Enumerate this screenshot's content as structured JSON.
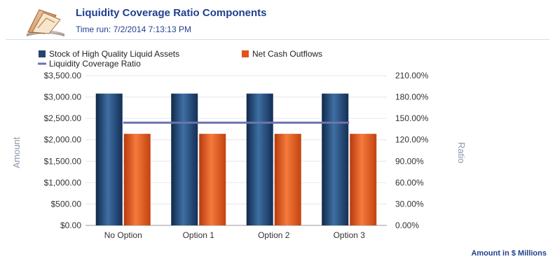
{
  "header": {
    "title": "Liquidity Coverage Ratio Components",
    "time_run": "Time run: 7/2/2014 7:13:13 PM",
    "icon": "report-folder-icon"
  },
  "footer": {
    "note": "Amount in $ Millions"
  },
  "colors": {
    "bar_stock": "#24456f",
    "bar_cash": "#e0531b",
    "line_ratio": "#6c74b0",
    "title": "#1f3f8f"
  },
  "chart_data": {
    "type": "bar",
    "categories": [
      "No Option",
      "Option 1",
      "Option 2",
      "Option 3"
    ],
    "series": [
      {
        "name": "Stock of High Quality Liquid Assets",
        "type": "bar",
        "axis": "left",
        "values": [
          3080,
          3080,
          3080,
          3080
        ]
      },
      {
        "name": "Net Cash Outflows",
        "type": "bar",
        "axis": "left",
        "values": [
          2140,
          2140,
          2140,
          2140
        ]
      },
      {
        "name": "Liquidity Coverage Ratio",
        "type": "line",
        "axis": "right",
        "values": [
          144,
          144,
          144,
          144
        ]
      }
    ],
    "ylabel": "Amount",
    "y2label": "Ratio",
    "ylim": [
      0,
      3500
    ],
    "y2lim": [
      0,
      210
    ],
    "yticks": [
      "$0.00",
      "$500.00",
      "$1,000.00",
      "$1,500.00",
      "$2,000.00",
      "$2,500.00",
      "$3,000.00",
      "$3,500.00"
    ],
    "y2ticks": [
      "0.00%",
      "30.00%",
      "60.00%",
      "90.00%",
      "120.00%",
      "150.00%",
      "180.00%",
      "210.00%"
    ],
    "grid": true,
    "legend": "top-left"
  }
}
